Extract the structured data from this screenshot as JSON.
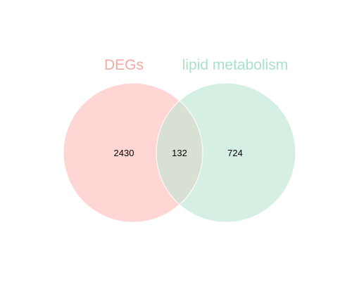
{
  "diagram": {
    "type": "venn",
    "sets": [
      {
        "name": "DEGs",
        "fill_color": "#ffd6d4",
        "label_color": "#f4a9a4"
      },
      {
        "name": "lipid metabolism",
        "fill_color": "#d5f0e3",
        "label_color": "#a9e2c8"
      }
    ],
    "counts": {
      "only_set_a": "2430",
      "intersection": "132",
      "only_set_b": "724"
    },
    "intersection_color": "#d8e0d3",
    "outline_color": "#ffffff"
  }
}
